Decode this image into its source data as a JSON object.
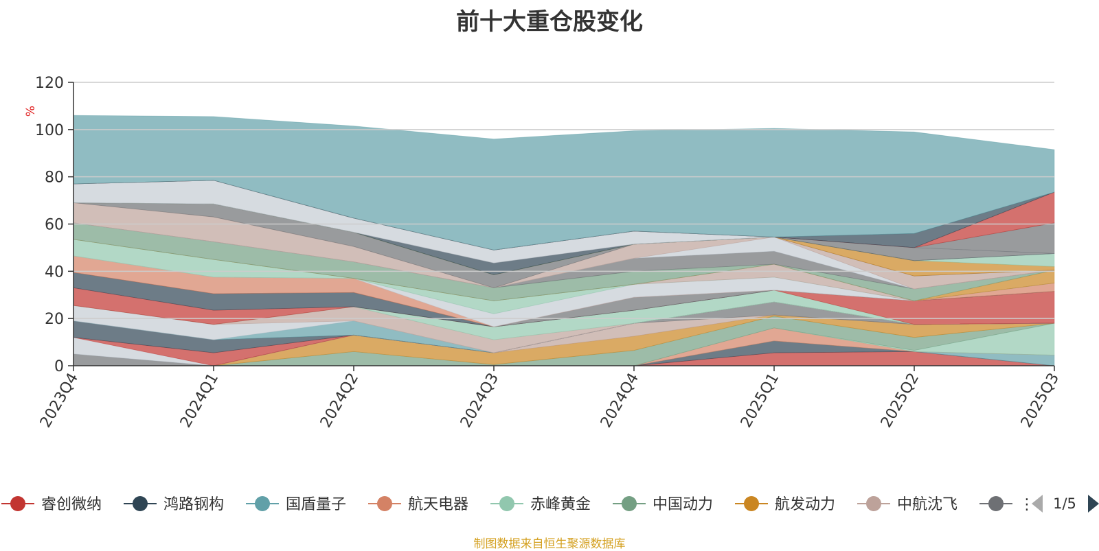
{
  "page_title": "前十大重仓股变化",
  "source": "制图数据来自恒生聚源数据库",
  "legend_pager": "1/5",
  "legend_overflow_label": "⋮",
  "chart_data": {
    "type": "area",
    "stacked": true,
    "title": "前十大重仓股变化",
    "ylabel": "%",
    "ylim": [
      0,
      120
    ],
    "yticks": [
      0,
      20,
      40,
      60,
      80,
      100,
      120
    ],
    "grid": true,
    "legend_position": "bottom",
    "categories": [
      "2023Q4",
      "2024Q1",
      "2024Q2",
      "2024Q3",
      "2024Q4",
      "2025Q1",
      "2025Q2",
      "2025Q3"
    ],
    "series": [
      {
        "name": "睿创微纳",
        "color": "#c23531",
        "legend": true,
        "values": [
          0,
          0,
          0,
          0,
          0,
          5.5,
          6.0,
          0
        ]
      },
      {
        "name": "鸿路钢构",
        "color": "#2f4554",
        "legend": true,
        "values": [
          0,
          0,
          0,
          0,
          0,
          5.0,
          0,
          0
        ]
      },
      {
        "name": "国盾量子",
        "color": "#61a0a8",
        "legend": true,
        "values": [
          0,
          0,
          0,
          0,
          0,
          0,
          0,
          4.5
        ]
      },
      {
        "name": "航天电器",
        "color": "#d48265",
        "legend": true,
        "values": [
          0,
          0,
          0,
          0,
          0,
          5.5,
          0,
          0
        ]
      },
      {
        "name": "赤峰黄金",
        "color": "#91c7ae",
        "legend": true,
        "values": [
          0,
          0,
          0,
          0,
          0,
          0,
          0.5,
          13.5
        ]
      },
      {
        "name": "中国动力",
        "color": "#749f83",
        "legend": true,
        "values": [
          0,
          0,
          6.0,
          0.5,
          6.5,
          5.0,
          5.5,
          0
        ]
      },
      {
        "name": "航发动力",
        "color": "#ca8622",
        "legend": true,
        "values": [
          0,
          0,
          7.0,
          5.0,
          6.0,
          0.5,
          5.5,
          0
        ]
      },
      {
        "name": "中航沈飞",
        "color": "#bda29a",
        "legend": true,
        "values": [
          0,
          0,
          0,
          0,
          5.5,
          0,
          0,
          0
        ]
      },
      {
        "name": "",
        "color": "#6e7074",
        "legend": true,
        "values": [
          5.0,
          0,
          0,
          0,
          0,
          5.5,
          0,
          0
        ]
      },
      {
        "name": "",
        "color": "#c4ccd3",
        "legend": false,
        "values": [
          7.0,
          0,
          0,
          0,
          0,
          0,
          0,
          0
        ]
      },
      {
        "name": "",
        "color": "#c23531",
        "legend": false,
        "values": [
          0,
          5.5,
          0,
          0,
          0,
          0,
          0,
          0
        ]
      },
      {
        "name": "",
        "color": "#2f4554",
        "legend": false,
        "values": [
          7.0,
          5.5,
          0,
          0,
          0,
          0,
          0,
          0
        ]
      },
      {
        "name": "",
        "color": "#61a0a8",
        "legend": false,
        "values": [
          0,
          0,
          6.0,
          0,
          0,
          0,
          0,
          0
        ]
      },
      {
        "name": "",
        "color": "#c4ccd3",
        "legend": false,
        "values": [
          6.5,
          6.5,
          0,
          0,
          0,
          0,
          0,
          0
        ]
      },
      {
        "name": "",
        "color": "#bda29a",
        "legend": false,
        "values": [
          0,
          0,
          6.0,
          5.5,
          0,
          0,
          0,
          0
        ]
      },
      {
        "name": "",
        "color": "#91c7ae",
        "legend": false,
        "values": [
          0,
          0,
          0,
          5.5,
          5.5,
          5.0,
          0,
          0
        ]
      },
      {
        "name": "",
        "color": "#c23531",
        "legend": false,
        "values": [
          7.5,
          6.0,
          0,
          0,
          0,
          0,
          10.0,
          13.5
        ]
      },
      {
        "name": "",
        "color": "#2f4554",
        "legend": false,
        "values": [
          6.5,
          7.0,
          6.0,
          0,
          0,
          0,
          0,
          0
        ]
      },
      {
        "name": "",
        "color": "#6e7074",
        "legend": false,
        "values": [
          0,
          0,
          0,
          0,
          5.5,
          0,
          0,
          0
        ]
      },
      {
        "name": "",
        "color": "#d48265",
        "legend": false,
        "values": [
          7.0,
          7.0,
          6.0,
          0,
          0,
          0,
          0,
          3.5
        ]
      },
      {
        "name": "",
        "color": "#c4ccd3",
        "legend": false,
        "values": [
          0,
          0,
          0,
          5.5,
          5.5,
          5.5,
          0,
          0
        ]
      },
      {
        "name": "",
        "color": "#91c7ae",
        "legend": false,
        "values": [
          7.0,
          7.5,
          0,
          5.5,
          0,
          0,
          0,
          0
        ]
      },
      {
        "name": "",
        "color": "#bda29a",
        "legend": false,
        "values": [
          0,
          0,
          0,
          0,
          0,
          5.5,
          0,
          0
        ]
      },
      {
        "name": "",
        "color": "#ca8622",
        "legend": false,
        "values": [
          0,
          0,
          0,
          0,
          0,
          0,
          0,
          5.5
        ]
      },
      {
        "name": "",
        "color": "#749f83",
        "legend": false,
        "values": [
          7.0,
          7.5,
          7.0,
          5.5,
          5.5,
          0,
          5.0,
          0
        ]
      },
      {
        "name": "",
        "color": "#6e7074",
        "legend": false,
        "values": [
          0,
          0,
          0,
          0,
          5.5,
          5.5,
          0,
          0
        ]
      },
      {
        "name": "",
        "color": "#c4ccd3",
        "legend": false,
        "values": [
          0,
          0,
          0,
          0,
          0,
          6.0,
          0,
          0
        ]
      },
      {
        "name": "",
        "color": "#bda29a",
        "legend": false,
        "values": [
          8.5,
          10.5,
          6.5,
          0,
          6.0,
          0,
          5.5,
          0
        ]
      },
      {
        "name": "",
        "color": "#6e7074",
        "legend": false,
        "values": [
          0,
          5.5,
          6.0,
          5.5,
          0,
          0,
          0,
          0
        ]
      },
      {
        "name": "",
        "color": "#ca8622",
        "legend": false,
        "values": [
          0,
          0,
          0,
          0,
          0,
          0,
          6.5,
          1.5
        ]
      },
      {
        "name": "",
        "color": "#91c7ae",
        "legend": false,
        "values": [
          0,
          0,
          0,
          0,
          0,
          0,
          0,
          5.5
        ]
      },
      {
        "name": "",
        "color": "#2f4554",
        "legend": false,
        "values": [
          0,
          0,
          0,
          5.0,
          0,
          0,
          0,
          0
        ]
      },
      {
        "name": "",
        "color": "#6e7074",
        "legend": false,
        "values": [
          0,
          0,
          0,
          0,
          0,
          0,
          5.5,
          0
        ]
      },
      {
        "name": "",
        "color": "#c4ccd3",
        "legend": false,
        "values": [
          8.0,
          10.0,
          6.0,
          5.5,
          5.5,
          0,
          0,
          0
        ]
      },
      {
        "name": "",
        "color": "#6e7074",
        "legend": false,
        "values": [
          0,
          0,
          0,
          0,
          0,
          0,
          0,
          13.0
        ]
      },
      {
        "name": "",
        "color": "#c23531",
        "legend": false,
        "values": [
          0,
          0,
          0,
          0,
          0,
          0,
          0,
          13.0
        ]
      },
      {
        "name": "",
        "color": "#2f4554",
        "legend": false,
        "values": [
          0,
          0,
          0,
          0,
          0,
          0,
          6.0,
          0
        ]
      },
      {
        "name": "",
        "color": "#61a0a8",
        "legend": false,
        "values": [
          29.0,
          27.0,
          39.0,
          47.0,
          42.5,
          46.0,
          43.0,
          18.0
        ]
      }
    ]
  }
}
